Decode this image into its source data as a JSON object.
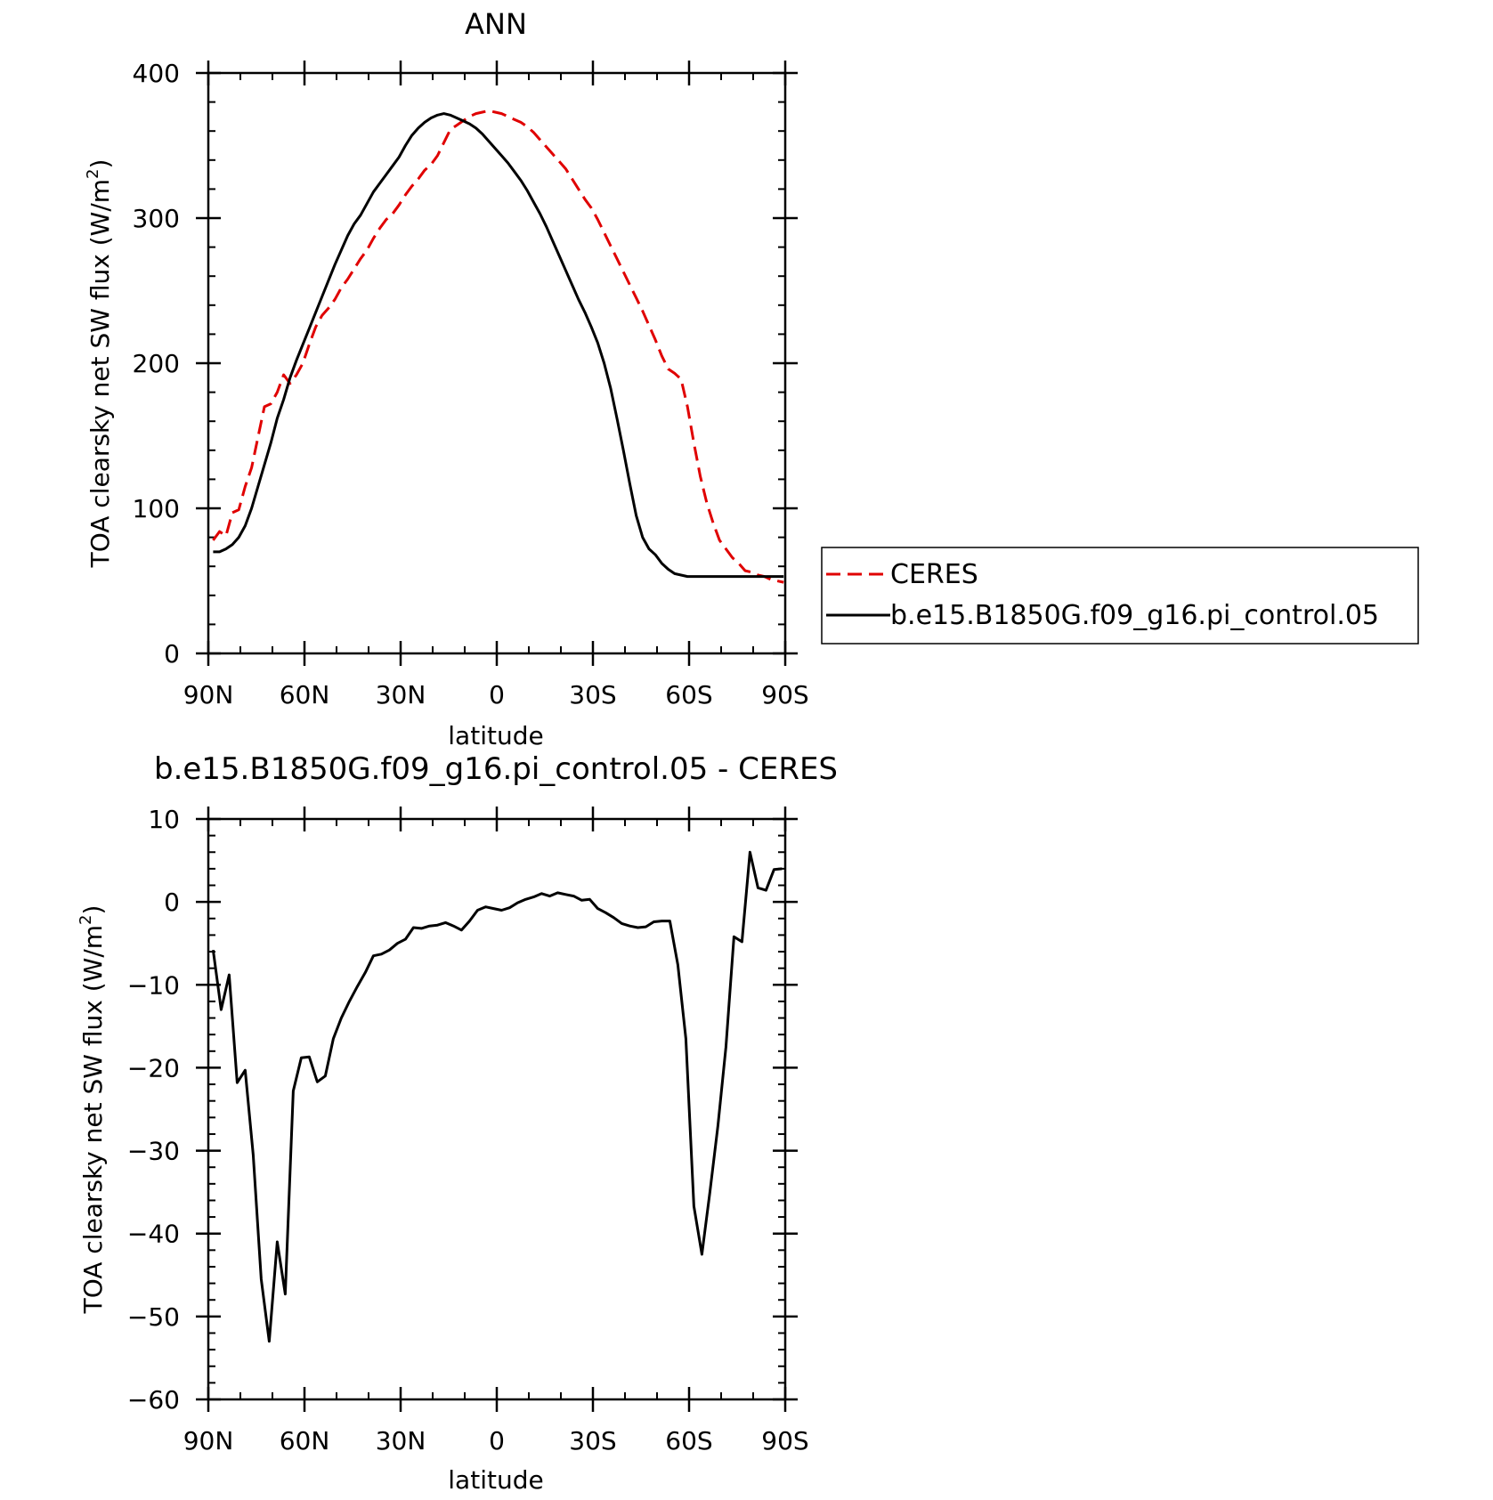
{
  "chart_data": [
    {
      "type": "line",
      "title": "ANN",
      "xlabel": "latitude",
      "ylabel": "TOA clearsky net SW flux (W/m",
      "ylabel_sup": "2",
      "ylabel_close": ")",
      "xlim": [
        90,
        -90
      ],
      "ylim": [
        0,
        400
      ],
      "xticks": [
        90,
        60,
        30,
        0,
        -30,
        -60,
        -90
      ],
      "xtick_labels": [
        "90N",
        "60N",
        "30N",
        "0",
        "30S",
        "60S",
        "90S"
      ],
      "yticks": [
        0,
        100,
        200,
        300,
        400
      ],
      "ytick_labels": [
        "0",
        "100",
        "200",
        "300",
        "400"
      ],
      "legend_position": "right",
      "series": [
        {
          "name": "CERES",
          "color": "#e00000",
          "dash": "dashed",
          "x": [
            88.5,
            86.5,
            84.5,
            82.5,
            80.5,
            78.5,
            76.5,
            74.5,
            72.5,
            70.5,
            68.5,
            66.5,
            64.5,
            62.5,
            60.5,
            58.5,
            56.5,
            54.5,
            52.5,
            50.5,
            48.5,
            46.5,
            44.5,
            42.5,
            40.5,
            38.5,
            36.5,
            34.5,
            32.5,
            30.5,
            28.5,
            26.5,
            24.5,
            22.5,
            20.5,
            18.5,
            16.5,
            14.5,
            12.5,
            10.5,
            8.5,
            6.5,
            4.5,
            2.5,
            0.5,
            -1.5,
            -3.5,
            -5.5,
            -7.5,
            -9.5,
            -11.5,
            -13.5,
            -15.5,
            -17.5,
            -19.5,
            -21.5,
            -23.5,
            -25.5,
            -27.5,
            -29.5,
            -31.5,
            -33.5,
            -35.5,
            -37.5,
            -39.5,
            -41.5,
            -43.5,
            -45.5,
            -47.5,
            -49.5,
            -51.5,
            -53.5,
            -55.5,
            -57.5,
            -59.5,
            -61.5,
            -63.5,
            -65.5,
            -67.5,
            -69.5,
            -71.5,
            -73.5,
            -75.5,
            -77.5,
            -79.5,
            -81.5,
            -83.5,
            -85.5,
            -87.5,
            -89.5
          ],
          "y": [
            78,
            84,
            81,
            97,
            99,
            115,
            128,
            149,
            170,
            172,
            180,
            192,
            186,
            192,
            200,
            213,
            225,
            233,
            238,
            244,
            252,
            258,
            265,
            272,
            278,
            286,
            293,
            299,
            303,
            309,
            316,
            322,
            327,
            333,
            337,
            343,
            352,
            361,
            364,
            367,
            370,
            372,
            373,
            374,
            373,
            372,
            370,
            368,
            366,
            363,
            359,
            354,
            349,
            344,
            339,
            334,
            327,
            320,
            313,
            307,
            299,
            290,
            281,
            272,
            263,
            254,
            245,
            236,
            226,
            216,
            205,
            196,
            193,
            189,
            170,
            145,
            122,
            104,
            90,
            78,
            72,
            66,
            62,
            57,
            56,
            54,
            53,
            51,
            50,
            49
          ]
        },
        {
          "name": "b.e15.B1850G.f09_g16.pi_control.05",
          "color": "#000000",
          "dash": "solid",
          "x": [
            88.5,
            86.5,
            84.5,
            82.5,
            80.5,
            78.5,
            76.5,
            74.5,
            72.5,
            70.5,
            68.5,
            66.5,
            64.5,
            62.5,
            60.5,
            58.5,
            56.5,
            54.5,
            52.5,
            50.5,
            48.5,
            46.5,
            44.5,
            42.5,
            40.5,
            38.5,
            36.5,
            34.5,
            32.5,
            30.5,
            28.5,
            26.5,
            24.5,
            22.5,
            20.5,
            18.5,
            16.5,
            14.5,
            12.5,
            10.5,
            8.5,
            6.5,
            4.5,
            2.5,
            0.5,
            -1.5,
            -3.5,
            -5.5,
            -7.5,
            -9.5,
            -11.5,
            -13.5,
            -15.5,
            -17.5,
            -19.5,
            -21.5,
            -23.5,
            -25.5,
            -27.5,
            -29.5,
            -31.5,
            -33.5,
            -35.5,
            -37.5,
            -39.5,
            -41.5,
            -43.5,
            -45.5,
            -47.5,
            -49.5,
            -51.5,
            -53.5,
            -55.5,
            -57.5,
            -59.5,
            -61.5,
            -63.5,
            -65.5,
            -67.5,
            -69.5,
            -71.5,
            -73.5,
            -75.5,
            -77.5,
            -79.5,
            -81.5,
            -83.5,
            -85.5,
            -87.5,
            -89.5
          ],
          "y": [
            70,
            70,
            72,
            75,
            80,
            88,
            100,
            115,
            130,
            145,
            162,
            175,
            190,
            202,
            213,
            224,
            235,
            246,
            257,
            268,
            278,
            288,
            296,
            302,
            310,
            318,
            324,
            330,
            336,
            342,
            350,
            357,
            362,
            366,
            369,
            371,
            372,
            371,
            369,
            367,
            365,
            362,
            358,
            353,
            348,
            343,
            338,
            332,
            326,
            319,
            311,
            303,
            294,
            284,
            274,
            264,
            254,
            244,
            235,
            225,
            214,
            200,
            183,
            162,
            140,
            117,
            95,
            80,
            72,
            68,
            62,
            58,
            55,
            54,
            53,
            53,
            53,
            53,
            53,
            53,
            53,
            53,
            53,
            53,
            53,
            53,
            53,
            53,
            53,
            53
          ]
        }
      ]
    },
    {
      "type": "line",
      "title": "b.e15.B1850G.f09_g16.pi_control.05 - CERES",
      "xlabel": "latitude",
      "ylabel": "TOA clearsky net SW flux (W/m",
      "ylabel_sup": "2",
      "ylabel_close": ")",
      "xlim": [
        90,
        -90
      ],
      "ylim": [
        -60,
        10
      ],
      "xticks": [
        90,
        60,
        30,
        0,
        -30,
        -60,
        -90
      ],
      "xtick_labels": [
        "90N",
        "60N",
        "30N",
        "0",
        "30S",
        "60S",
        "90S"
      ],
      "yticks": [
        10,
        0,
        -10,
        -20,
        -30,
        -40,
        -50,
        -60
      ],
      "ytick_labels": [
        "10",
        "0",
        "−10",
        "−20",
        "−30",
        "−40",
        "−50",
        "−60"
      ],
      "series": [
        {
          "name": "",
          "color": "#000000",
          "dash": "solid",
          "x": [
            88.5,
            86,
            83.5,
            81,
            78.5,
            76,
            73.5,
            71,
            68.5,
            66,
            63.5,
            61,
            58.5,
            56,
            53.5,
            51,
            48.5,
            46,
            43.5,
            41,
            38.5,
            36,
            33.5,
            31,
            28.5,
            26,
            23.5,
            21,
            18.5,
            16,
            13.5,
            11,
            8.5,
            6,
            3.5,
            1,
            -1.5,
            -4,
            -6.5,
            -9,
            -11.5,
            -14,
            -16.5,
            -19,
            -21.5,
            -24,
            -26.5,
            -29,
            -31.5,
            -34,
            -36.5,
            -39,
            -41.5,
            -44,
            -46.5,
            -49,
            -51.5,
            -54,
            -56.5,
            -59,
            -61.5,
            -64,
            -66.5,
            -69,
            -71.5,
            -74,
            -76.5,
            -79,
            -81.5,
            -84,
            -86.5,
            -89
          ],
          "y": [
            -5.8,
            -13.0,
            -8.8,
            -21.8,
            -20.3,
            -30.5,
            -45.5,
            -53.0,
            -41.0,
            -47.3,
            -22.8,
            -18.8,
            -18.7,
            -21.7,
            -21.0,
            -16.5,
            -14.0,
            -12.0,
            -10.2,
            -8.5,
            -6.5,
            -6.3,
            -5.8,
            -5.0,
            -4.5,
            -3.1,
            -3.2,
            -2.9,
            -2.8,
            -2.5,
            -2.9,
            -3.4,
            -2.3,
            -1.0,
            -0.6,
            -0.8,
            -1.0,
            -0.7,
            -0.1,
            0.3,
            0.6,
            1.0,
            0.7,
            1.1,
            0.9,
            0.7,
            0.2,
            0.3,
            -0.8,
            -1.3,
            -1.9,
            -2.6,
            -2.9,
            -3.1,
            -3.0,
            -2.4,
            -2.3,
            -2.3,
            -7.6,
            -16.5,
            -36.7,
            -42.5,
            -35.0,
            -27.0,
            -17.5,
            -4.2,
            -4.8,
            6.0,
            1.7,
            1.4,
            3.9,
            4.0
          ]
        }
      ]
    }
  ]
}
